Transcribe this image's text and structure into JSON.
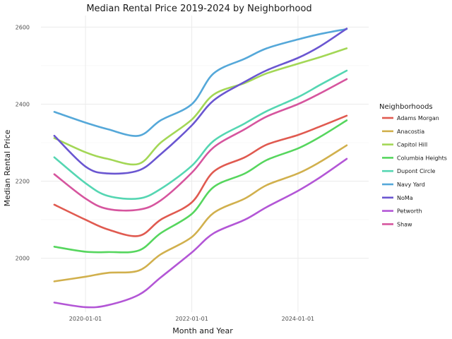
{
  "chart_data": {
    "type": "line",
    "title": "Median Rental Price 2019-2024 by Neighborhood",
    "xlabel": "Month and Year",
    "ylabel": "Median Rental Price",
    "x_ticks": [
      "2020-01-01",
      "2022-01-01",
      "2024-01-01"
    ],
    "y_ticks": [
      2000,
      2200,
      2400,
      2600
    ],
    "xlim": [
      "2019-03-01",
      "2025-05-01"
    ],
    "ylim": [
      1860,
      2630
    ],
    "grid": true,
    "legend_title": "Neighborhoods",
    "legend_position": "right",
    "x": [
      "2019-06-01",
      "2020-01-01",
      "2020-06-01",
      "2021-01-01",
      "2021-06-01",
      "2022-01-01",
      "2022-06-01",
      "2023-01-01",
      "2023-06-01",
      "2024-01-01",
      "2024-06-01",
      "2024-12-01"
    ],
    "series": [
      {
        "name": "Adams Morgan",
        "color": "#E05A50",
        "values": [
          2139,
          2100,
          2075,
          2058,
          2100,
          2145,
          2225,
          2262,
          2295,
          2320,
          2342,
          2370
        ]
      },
      {
        "name": "Anacostia",
        "color": "#D1B04D",
        "values": [
          1940,
          1952,
          1962,
          1968,
          2010,
          2055,
          2118,
          2155,
          2190,
          2220,
          2250,
          2293
        ]
      },
      {
        "name": "Capitol Hill",
        "color": "#A3D756",
        "values": [
          2312,
          2275,
          2258,
          2245,
          2300,
          2360,
          2425,
          2455,
          2480,
          2505,
          2522,
          2545
        ]
      },
      {
        "name": "Columbia Heights",
        "color": "#56D65E",
        "values": [
          2030,
          2017,
          2016,
          2020,
          2065,
          2115,
          2185,
          2220,
          2255,
          2285,
          2315,
          2358
        ]
      },
      {
        "name": "Dupont Circle",
        "color": "#55D6B2",
        "values": [
          2262,
          2195,
          2162,
          2155,
          2180,
          2240,
          2305,
          2350,
          2382,
          2418,
          2450,
          2487
        ]
      },
      {
        "name": "Navy Yard",
        "color": "#55A8D9",
        "values": [
          2380,
          2352,
          2335,
          2318,
          2358,
          2400,
          2480,
          2518,
          2545,
          2568,
          2582,
          2595
        ]
      },
      {
        "name": "NoMa",
        "color": "#6A56D1",
        "values": [
          2318,
          2238,
          2220,
          2228,
          2270,
          2345,
          2410,
          2458,
          2488,
          2520,
          2550,
          2596
        ]
      },
      {
        "name": "Petworth",
        "color": "#B356D6",
        "values": [
          1885,
          1873,
          1878,
          1905,
          1950,
          2015,
          2065,
          2100,
          2133,
          2175,
          2210,
          2258
        ]
      },
      {
        "name": "Shaw",
        "color": "#D6559E",
        "values": [
          2218,
          2155,
          2128,
          2126,
          2150,
          2222,
          2288,
          2335,
          2368,
          2400,
          2428,
          2465
        ]
      }
    ]
  }
}
